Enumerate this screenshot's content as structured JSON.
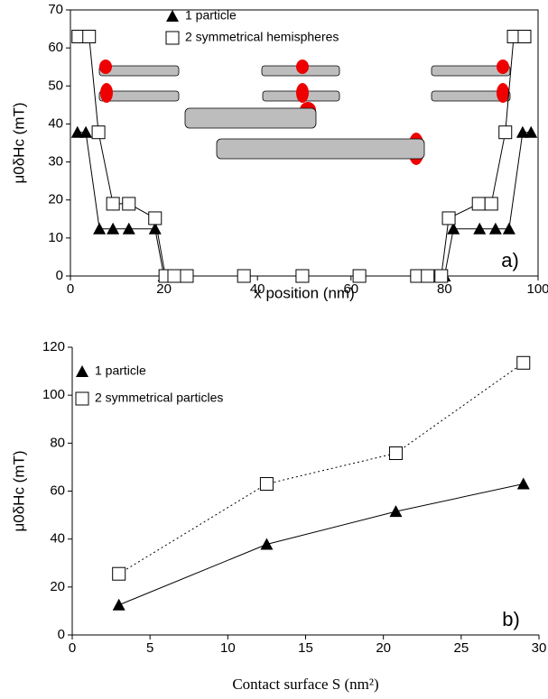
{
  "chart_data": [
    {
      "type": "scatter_line",
      "xlabel": "x position  (nm)",
      "ylabel": "μ0δHc (mT)",
      "annotation": "a)",
      "xlim": [
        0,
        100
      ],
      "ylim": [
        0,
        70
      ],
      "xticks": [
        0,
        20,
        40,
        60,
        80,
        100
      ],
      "yticks": [
        0,
        10,
        20,
        30,
        40,
        50,
        60,
        70
      ],
      "series": [
        {
          "name": "1 particle",
          "marker": "triangle",
          "color": "#000000",
          "line": "solid",
          "x": [
            1.5,
            3.3,
            6.2,
            9.1,
            12.5,
            18.1,
            20,
            80,
            81.9,
            87.5,
            90.9,
            93.8,
            96.7,
            98.5
          ],
          "values": [
            37.8,
            37.8,
            12.4,
            12.4,
            12.4,
            12.4,
            0,
            0,
            12.4,
            12.4,
            12.4,
            12.4,
            37.8,
            37.8
          ]
        },
        {
          "name": "2 symmetrical hemispheres",
          "marker": "square",
          "color": "#000000",
          "line": "solid",
          "x": [
            1.7,
            4.0,
            6.0,
            9.1,
            12.5,
            18.1,
            20.3,
            22.2,
            24.9,
            37.1,
            49.6,
            61.8,
            74.1,
            76.4,
            79.3,
            80.9,
            87.3,
            90.0,
            93.0,
            94.8,
            97.1
          ],
          "values": [
            63,
            63,
            37.8,
            19,
            19,
            15.2,
            0,
            0,
            0,
            0,
            0,
            0,
            0,
            0,
            0,
            15.2,
            19,
            19,
            37.8,
            63,
            63
          ]
        }
      ]
    },
    {
      "type": "scatter_line",
      "xlabel": "Contact surface S (nm²)",
      "ylabel": "μ0δHc (mT)",
      "annotation": "b)",
      "xlim": [
        0,
        30
      ],
      "ylim": [
        0,
        120
      ],
      "xticks": [
        0,
        5,
        10,
        15,
        20,
        25,
        30
      ],
      "yticks": [
        0,
        20,
        40,
        60,
        80,
        100,
        120
      ],
      "series": [
        {
          "name": "1 particle",
          "marker": "triangle",
          "color": "#000000",
          "line": "solid",
          "x": [
            3,
            12.5,
            20.8,
            29
          ],
          "values": [
            12.5,
            37.8,
            51.5,
            63
          ]
        },
        {
          "name": "2 symmetrical particles",
          "marker": "square",
          "color": "#000000",
          "line": "dotted",
          "x": [
            3,
            12.5,
            20.8,
            29
          ],
          "values": [
            25.5,
            63,
            75.8,
            113.5
          ]
        }
      ]
    }
  ]
}
